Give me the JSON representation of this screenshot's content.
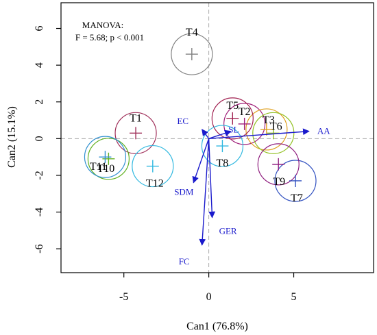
{
  "chart_data": {
    "type": "scatter",
    "xlabel": "Can1 (76.8%)",
    "ylabel": "Can2 (15.1%)",
    "xlim": [
      -8.7,
      9.7
    ],
    "ylim": [
      -7.3,
      7.4
    ],
    "xticks": [
      -5,
      0,
      5
    ],
    "yticks": [
      -6,
      -4,
      -2,
      0,
      2,
      4,
      6
    ],
    "reference_lines": {
      "x": 0,
      "y": 0,
      "style": "dashed"
    },
    "annotation": {
      "line1": "MANOVA:",
      "line2": "F = 5.68; p < 0.001"
    },
    "treatments": [
      {
        "label": "T1",
        "x": -4.3,
        "y": 0.3,
        "color": "#a0305a"
      },
      {
        "label": "T2",
        "x": 2.1,
        "y": 0.8,
        "color": "#a0207a"
      },
      {
        "label": "T3",
        "x": 3.4,
        "y": 0.5,
        "color": "#e0a020"
      },
      {
        "label": "T4",
        "x": -1.0,
        "y": 4.6,
        "color": "#808080"
      },
      {
        "label": "T5",
        "x": 1.4,
        "y": 1.1,
        "color": "#a02050"
      },
      {
        "label": "T6",
        "x": 3.8,
        "y": 0.3,
        "color": "#90c020"
      },
      {
        "label": "T7",
        "x": 5.1,
        "y": -2.3,
        "color": "#3050c0"
      },
      {
        "label": "T8",
        "x": 0.8,
        "y": -0.4,
        "color": "#30b8e0"
      },
      {
        "label": "T9",
        "x": 4.1,
        "y": -1.4,
        "color": "#902080"
      },
      {
        "label": "T10",
        "x": -5.9,
        "y": -1.1,
        "color": "#60b020"
      },
      {
        "label": "T11",
        "x": -6.1,
        "y": -1.0,
        "color": "#3090d0"
      },
      {
        "label": "T12",
        "x": -3.3,
        "y": -1.5,
        "color": "#30b8e0"
      }
    ],
    "vectors": [
      {
        "label": "AA",
        "x": 5.9,
        "y": 0.4
      },
      {
        "label": "SL",
        "x": 1.3,
        "y": 0.4
      },
      {
        "label": "EC",
        "x": -0.4,
        "y": 0.5
      },
      {
        "label": "SDM",
        "x": -0.9,
        "y": -2.4
      },
      {
        "label": "GER",
        "x": 0.2,
        "y": -4.3
      },
      {
        "label": "FC",
        "x": -0.4,
        "y": -5.8
      }
    ]
  }
}
